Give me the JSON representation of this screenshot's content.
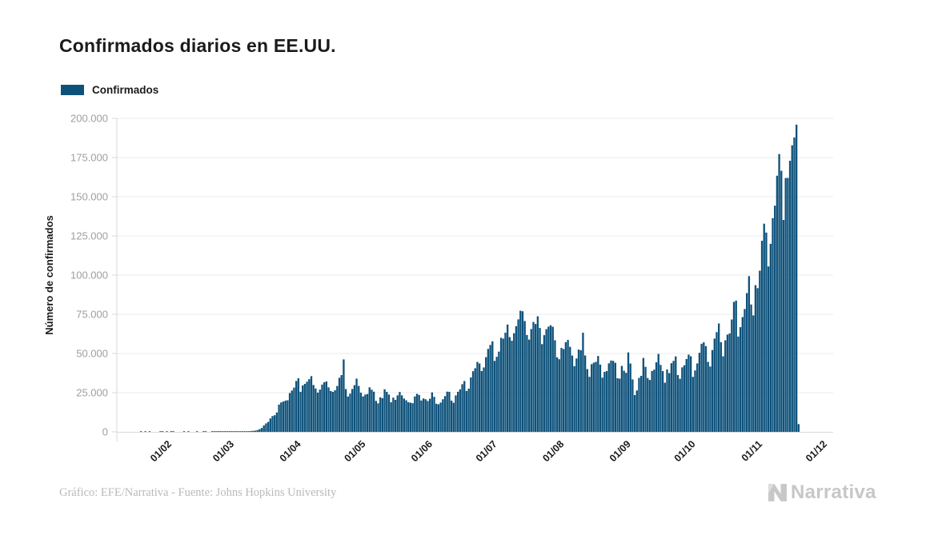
{
  "title": "Confirmados diarios en EE.UU.",
  "legend": {
    "label": "Confirmados",
    "color": "#0e527b"
  },
  "footer": {
    "credit": "Gráfico: EFE/Narrativa - Fuente: Johns Hopkins University"
  },
  "logo": {
    "text": "Narrativa"
  },
  "chart_data": {
    "type": "bar",
    "title": "Confirmados diarios en EE.UU.",
    "series_name": "Confirmados",
    "xlabel": "",
    "ylabel": "Número de confirmados",
    "ylim": [
      0,
      200000
    ],
    "grid": true,
    "legend_position": "top-left",
    "bar_color": "#0e527b",
    "grid_color": "#ebebeb",
    "axis_color": "#d9d9d9",
    "y_ticks": [
      {
        "value": 0,
        "label": "0"
      },
      {
        "value": 25000,
        "label": "25.000"
      },
      {
        "value": 50000,
        "label": "50.000"
      },
      {
        "value": 75000,
        "label": "75.000"
      },
      {
        "value": 100000,
        "label": "100.000"
      },
      {
        "value": 125000,
        "label": "125.000"
      },
      {
        "value": 150000,
        "label": "150.000"
      },
      {
        "value": 175000,
        "label": "175.000"
      },
      {
        "value": 200000,
        "label": "200.000"
      }
    ],
    "x_ticks": [
      {
        "label": "01/02",
        "day": 10
      },
      {
        "label": "01/03",
        "day": 39
      },
      {
        "label": "01/04",
        "day": 70
      },
      {
        "label": "01/05",
        "day": 100
      },
      {
        "label": "01/06",
        "day": 131
      },
      {
        "label": "01/07",
        "day": 161
      },
      {
        "label": "01/08",
        "day": 192
      },
      {
        "label": "01/09",
        "day": 223
      },
      {
        "label": "01/10",
        "day": 253
      },
      {
        "label": "01/11",
        "day": 284
      },
      {
        "label": "01/12",
        "day": 314
      }
    ],
    "start_date": "22/01",
    "end_date": "22/11",
    "values": [
      1,
      0,
      1,
      0,
      3,
      0,
      0,
      0,
      0,
      2,
      1,
      0,
      3,
      0,
      1,
      1,
      0,
      0,
      0,
      0,
      1,
      0,
      1,
      0,
      0,
      0,
      2,
      0,
      0,
      1,
      19,
      0,
      0,
      16,
      2,
      6,
      1,
      4,
      8,
      6,
      23,
      25,
      34,
      63,
      115,
      113,
      125,
      206,
      292,
      397,
      274,
      544,
      633,
      767,
      1126,
      1693,
      2509,
      4119,
      5385,
      6346,
      8554,
      10087,
      10591,
      12343,
      17383,
      18743,
      19346,
      19927,
      20151,
      24742,
      26357,
      28219,
      32454,
      34196,
      25564,
      29595,
      30613,
      31997,
      33606,
      35527,
      29861,
      27620,
      25023,
      26922,
      30148,
      31637,
      32165,
      28369,
      26055,
      25507,
      26513,
      29266,
      34479,
      36188,
      46218,
      27303,
      22541,
      24385,
      27327,
      29763,
      33955,
      29288,
      24972,
      22593,
      23792,
      24128,
      28420,
      26906,
      25612,
      19731,
      18196,
      22048,
      21467,
      27143,
      25508,
      23792,
      18873,
      21841,
      20426,
      23285,
      25434,
      23290,
      21236,
      20130,
      18910,
      18611,
      18263,
      22577,
      24266,
      23553,
      20007,
      21290,
      20801,
      19699,
      21140,
      25176,
      22317,
      17919,
      17598,
      18679,
      20793,
      22800,
      25641,
      25540,
      19920,
      18577,
      23241,
      25555,
      27113,
      30409,
      32411,
      26079,
      27530,
      34720,
      38672,
      40588,
      44602,
      43581,
      38800,
      41075,
      47655,
      52898,
      55442,
      57718,
      45255,
      47886,
      51184,
      60021,
      59457,
      63248,
      68477,
      60469,
      58114,
      62918,
      67417,
      71750,
      77255,
      76930,
      70689,
      61795,
      58858,
      65594,
      70106,
      68800,
      73715,
      66281,
      55961,
      61691,
      65509,
      67128,
      68032,
      67023,
      58429,
      47511,
      46321,
      53558,
      52807,
      57178,
      58611,
      54234,
      48690,
      41893,
      46808,
      52499,
      52025,
      63246,
      48733,
      40022,
      35112,
      43179,
      44124,
      44657,
      48377,
      42931,
      34567,
      38248,
      38811,
      43706,
      45479,
      45278,
      44064,
      34233,
      33930,
      42068,
      39005,
      37657,
      50671,
      43571,
      33461,
      23490,
      26406,
      34447,
      35724,
      47131,
      41468,
      34348,
      33102,
      38811,
      39684,
      44357,
      49691,
      42718,
      38767,
      31338,
      39774,
      37469,
      43772,
      45276,
      48120,
      36233,
      33860,
      41166,
      42477,
      46468,
      49292,
      48224,
      35038,
      39177,
      43644,
      50445,
      56191,
      57106,
      54684,
      44614,
      41653,
      52178,
      59494,
      63610,
      69129,
      57224,
      48210,
      58395,
      62042,
      62776,
      71671,
      82929,
      83718,
      60789,
      66798,
      73240,
      78358,
      88521,
      99321,
      81227,
      74276,
      93581,
      91660,
      102831,
      121888,
      132797,
      127131,
      105506,
      119960,
      136325,
      144270,
      163405,
      177224,
      166555,
      135187,
      161934,
      162014,
      172935,
      182832,
      187833,
      196004,
      4930
    ]
  }
}
